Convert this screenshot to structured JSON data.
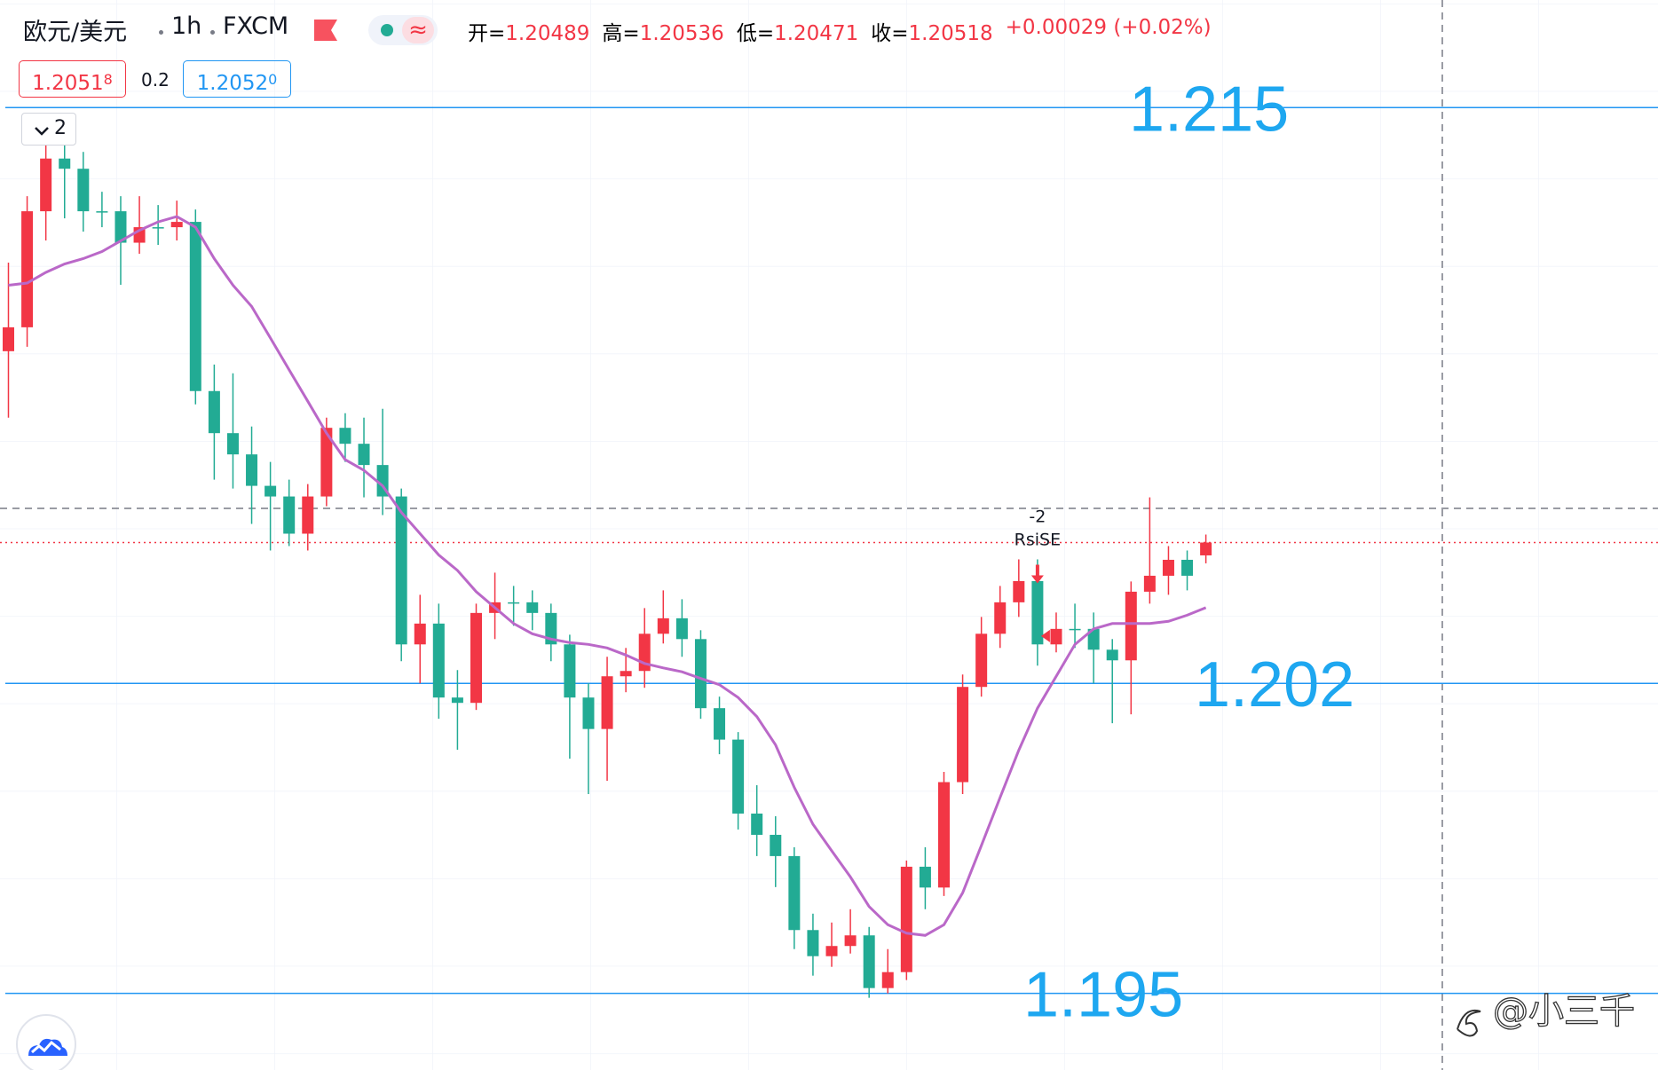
{
  "header": {
    "symbol": "欧元/美元",
    "interval": "1h",
    "source": "FXCM",
    "approx": "≈",
    "ohlc": [
      {
        "label": "开=",
        "value": "1.20489"
      },
      {
        "label": "高=",
        "value": "1.20536"
      },
      {
        "label": "低=",
        "value": "1.20471"
      },
      {
        "label": "收=",
        "value": "1.20518"
      }
    ],
    "change": "+0.00029 (+0.02%)",
    "bid": {
      "main": "1.2051",
      "pip": "8"
    },
    "spread": "0.2",
    "ask": {
      "main": "1.2052",
      "pip": "0"
    },
    "collapse": "2"
  },
  "chart_data": {
    "type": "candlestick",
    "ylim": [
      1.19327,
      1.21743
    ],
    "up_color": "#f23645",
    "down_color": "#22ab94",
    "ma_color": "#ba68c8",
    "level_color": "#2196f3",
    "level_label_color": "#1ea7f0",
    "candles": [
      [
        1.2095,
        1.2115,
        1.208,
        1.21004
      ],
      [
        1.21004,
        1.213,
        1.2096,
        1.21266
      ],
      [
        1.21266,
        1.2142,
        1.212,
        1.21385
      ],
      [
        1.21385,
        1.2145,
        1.2125,
        1.21362
      ],
      [
        1.21362,
        1.214,
        1.2122,
        1.21266
      ],
      [
        1.21266,
        1.2131,
        1.2123,
        1.21266
      ],
      [
        1.21266,
        1.213,
        1.211,
        1.21195
      ],
      [
        1.21195,
        1.213,
        1.2117,
        1.2123
      ],
      [
        1.2123,
        1.2128,
        1.2119,
        1.2123
      ],
      [
        1.2123,
        1.2129,
        1.212,
        1.21242
      ],
      [
        1.21242,
        1.2127,
        1.2083,
        1.2086
      ],
      [
        1.2086,
        1.2092,
        1.2066,
        1.20765
      ],
      [
        1.20765,
        1.209,
        1.2064,
        1.20717
      ],
      [
        1.20717,
        1.2078,
        1.2056,
        1.20646
      ],
      [
        1.20646,
        1.207,
        1.205,
        1.20622
      ],
      [
        1.20622,
        1.2066,
        1.2051,
        1.20538
      ],
      [
        1.20538,
        1.2065,
        1.205,
        1.20622
      ],
      [
        1.20622,
        1.208,
        1.206,
        1.20777
      ],
      [
        1.20777,
        1.2081,
        1.207,
        1.20741
      ],
      [
        1.20741,
        1.208,
        1.2062,
        1.20693
      ],
      [
        1.20693,
        1.2082,
        1.2058,
        1.20622
      ],
      [
        1.20622,
        1.2064,
        1.2025,
        1.20288
      ],
      [
        1.20288,
        1.204,
        1.202,
        1.20335
      ],
      [
        1.20335,
        1.2038,
        1.2012,
        1.20168
      ],
      [
        1.20168,
        1.2023,
        1.2005,
        1.20156
      ],
      [
        1.20156,
        1.2038,
        1.2014,
        1.20359
      ],
      [
        1.20359,
        1.2045,
        1.203,
        1.20383
      ],
      [
        1.20383,
        1.2042,
        1.2033,
        1.20383
      ],
      [
        1.20383,
        1.2041,
        1.2032,
        1.20359
      ],
      [
        1.20359,
        1.2038,
        1.2025,
        1.20288
      ],
      [
        1.20288,
        1.2031,
        1.2003,
        1.20168
      ],
      [
        1.20168,
        1.202,
        1.1995,
        1.20097
      ],
      [
        1.20097,
        1.2026,
        1.1998,
        1.20216
      ],
      [
        1.20216,
        1.2028,
        1.2018,
        1.20228
      ],
      [
        1.20228,
        1.2037,
        1.2019,
        1.20312
      ],
      [
        1.20312,
        1.2041,
        1.2029,
        1.20347
      ],
      [
        1.20347,
        1.2039,
        1.2026,
        1.203
      ],
      [
        1.203,
        1.2032,
        1.2012,
        1.20144
      ],
      [
        1.20144,
        1.2017,
        1.2004,
        1.20073
      ],
      [
        1.20073,
        1.2009,
        1.1987,
        1.19906
      ],
      [
        1.19906,
        1.1997,
        1.1981,
        1.19858
      ],
      [
        1.19858,
        1.199,
        1.1974,
        1.1981
      ],
      [
        1.1981,
        1.1983,
        1.196,
        1.19643
      ],
      [
        1.19643,
        1.1968,
        1.1954,
        1.19584
      ],
      [
        1.19584,
        1.1966,
        1.1956,
        1.19607
      ],
      [
        1.19607,
        1.1969,
        1.1959,
        1.19631
      ],
      [
        1.19631,
        1.1965,
        1.1949,
        1.19512
      ],
      [
        1.19512,
        1.196,
        1.195,
        1.19548
      ],
      [
        1.19548,
        1.198,
        1.1953,
        1.19786
      ],
      [
        1.19786,
        1.1983,
        1.1969,
        1.19739
      ],
      [
        1.19739,
        1.2,
        1.1972,
        1.19977
      ],
      [
        1.19977,
        1.2022,
        1.1995,
        1.20192
      ],
      [
        1.20192,
        1.2035,
        1.2017,
        1.20312
      ],
      [
        1.20312,
        1.2042,
        1.2028,
        1.20383
      ],
      [
        1.20383,
        1.2048,
        1.2035,
        1.20431
      ],
      [
        1.20431,
        1.2048,
        1.2024,
        1.20288
      ],
      [
        1.20288,
        1.2036,
        1.2027,
        1.20323
      ],
      [
        1.20323,
        1.2038,
        1.2028,
        1.20323
      ],
      [
        1.20323,
        1.2036,
        1.202,
        1.20276
      ],
      [
        1.20276,
        1.203,
        1.2011,
        1.20252
      ],
      [
        1.20252,
        1.2043,
        1.2013,
        1.20407
      ],
      [
        1.20407,
        1.2062,
        1.2038,
        1.20443
      ],
      [
        1.20443,
        1.2051,
        1.204,
        1.20479
      ],
      [
        1.20479,
        1.205,
        1.2041,
        1.20443
      ],
      [
        1.20489,
        1.20536,
        1.20471,
        1.20518
      ]
    ],
    "ma": [
      1.21099,
      1.21104,
      1.21128,
      1.21147,
      1.21159,
      1.21175,
      1.21199,
      1.21223,
      1.21242,
      1.21254,
      1.2123,
      1.21159,
      1.21099,
      1.21051,
      1.2098,
      1.20908,
      1.20837,
      1.20765,
      1.20705,
      1.20681,
      1.20646,
      1.20586,
      1.20538,
      1.2049,
      1.20455,
      1.20407,
      1.20371,
      1.20335,
      1.20312,
      1.203,
      1.20292,
      1.20288,
      1.2028,
      1.20264,
      1.20245,
      1.20235,
      1.20226,
      1.20211,
      1.20197,
      1.20168,
      1.20125,
      1.20061,
      1.19965,
      1.19882,
      1.19822,
      1.19763,
      1.19696,
      1.19655,
      1.19636,
      1.19631,
      1.19655,
      1.19727,
      1.19834,
      1.19942,
      1.20049,
      1.20144,
      1.20216,
      1.20288,
      1.20323,
      1.20335,
      1.20335,
      1.20335,
      1.2034,
      1.20354,
      1.20371
    ],
    "levels": [
      1.215,
      1.202,
      1.195
    ],
    "crosshair": 1.20595,
    "signals": [
      {
        "x": 55,
        "label": "-2",
        "name": "RsiSE"
      }
    ],
    "watermark": "@小三千"
  }
}
